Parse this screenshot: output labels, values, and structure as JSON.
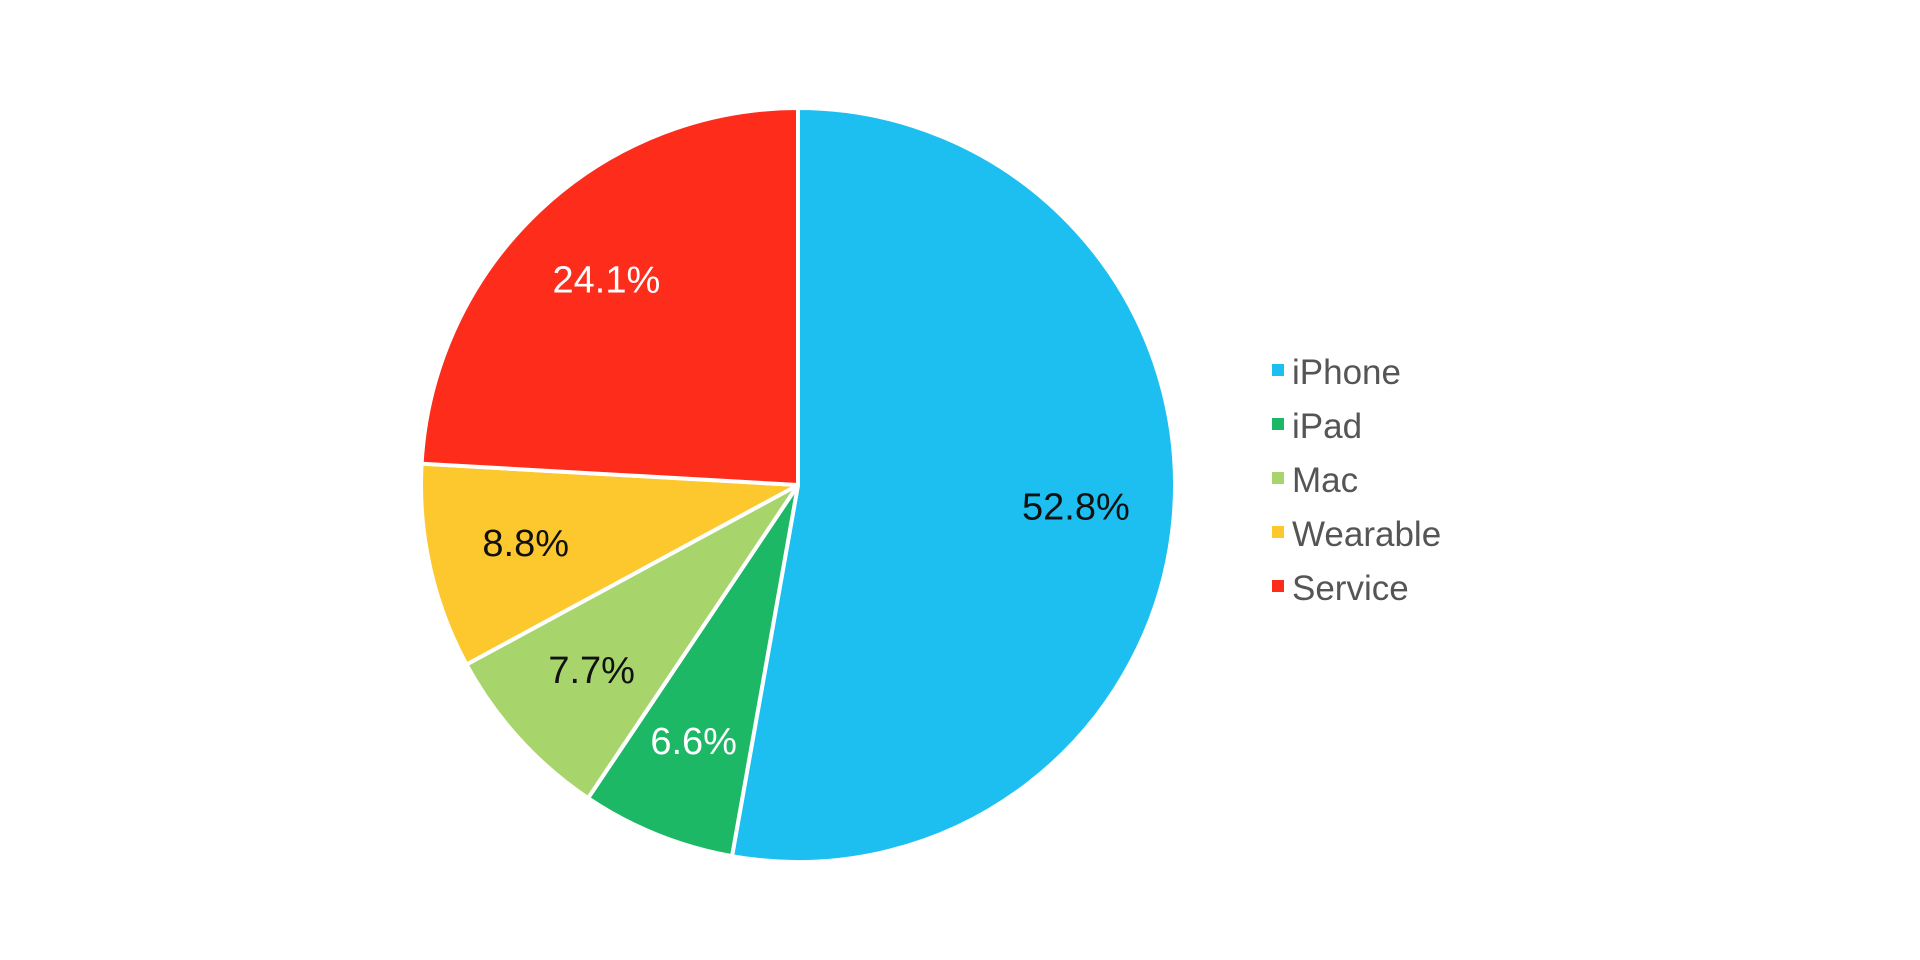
{
  "chart_data": {
    "type": "pie",
    "title": "",
    "start_angle_deg": 0,
    "direction": "clockwise",
    "legend_position": "right",
    "slices": [
      {
        "name": "iPhone",
        "value": 52.8,
        "label": "52.8%",
        "color": "#1cbff0",
        "label_color": "#111111"
      },
      {
        "name": "iPad",
        "value": 6.6,
        "label": "6.6%",
        "color": "#1db865",
        "label_color": "#ffffff"
      },
      {
        "name": "Mac",
        "value": 7.7,
        "label": "7.7%",
        "color": "#a8d46c",
        "label_color": "#111111"
      },
      {
        "name": "Wearable",
        "value": 8.8,
        "label": "8.8%",
        "color": "#fdc82e",
        "label_color": "#111111"
      },
      {
        "name": "Service",
        "value": 24.1,
        "label": "24.1%",
        "color": "#fd2c1b",
        "label_color": "#ffffff"
      }
    ]
  }
}
